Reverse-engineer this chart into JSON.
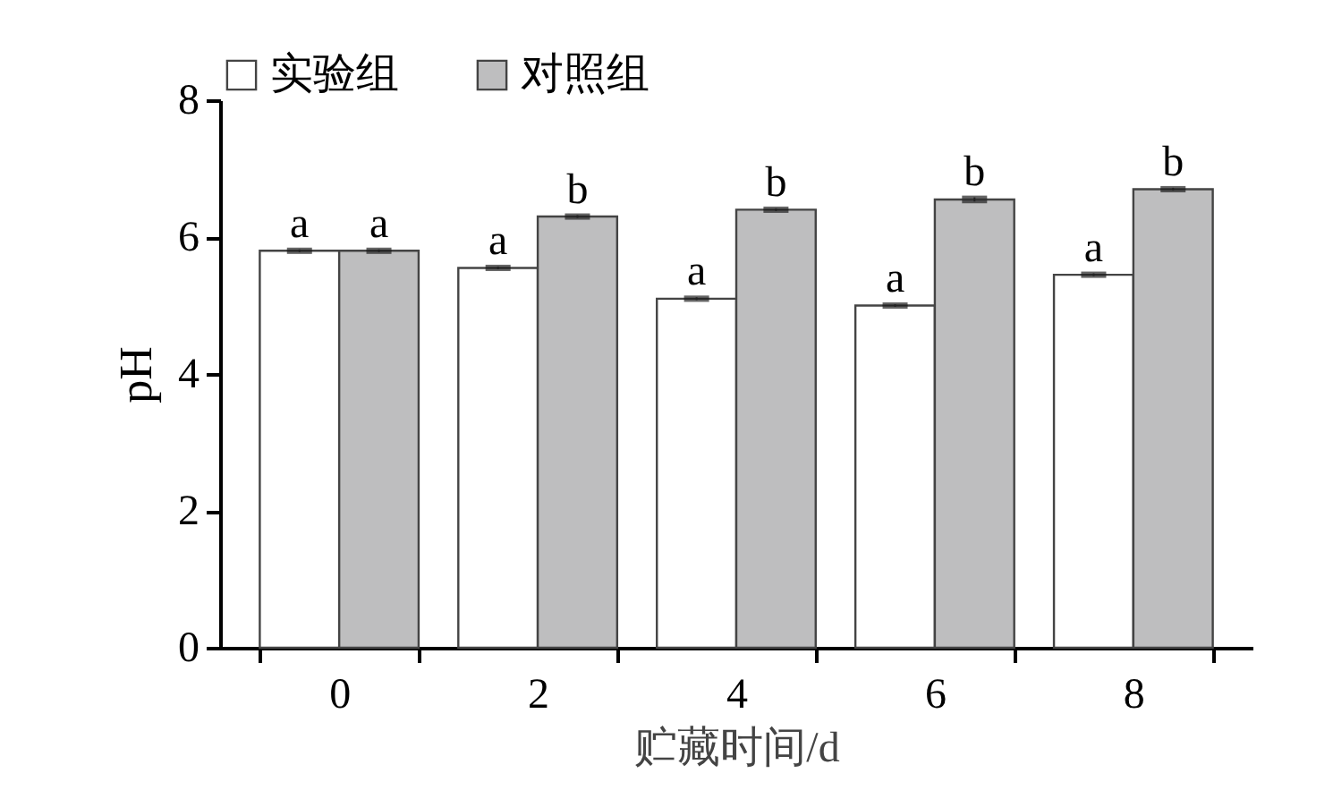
{
  "chart_data": {
    "type": "bar",
    "xlabel": "贮藏时间/d",
    "ylabel": "pH",
    "categories": [
      "0",
      "2",
      "4",
      "6",
      "8"
    ],
    "series": [
      {
        "name": "实验组",
        "color": "#ffffff",
        "values": [
          5.8,
          5.55,
          5.1,
          5.0,
          5.45
        ],
        "errors": [
          0.02,
          0.02,
          0.02,
          0.02,
          0.02
        ],
        "value_labels": [
          "a",
          "a",
          "a",
          "a",
          "a"
        ]
      },
      {
        "name": "对照组",
        "color": "#bebebf",
        "values": [
          5.8,
          6.3,
          6.4,
          6.55,
          6.7
        ],
        "errors": [
          0.02,
          0.02,
          0.02,
          0.03,
          0.02
        ],
        "value_labels": [
          "a",
          "b",
          "b",
          "b",
          "b"
        ]
      }
    ],
    "ylim": [
      0,
      8
    ],
    "yticks": [
      0,
      2,
      4,
      6,
      8
    ],
    "legend": "top",
    "grid": false
  }
}
